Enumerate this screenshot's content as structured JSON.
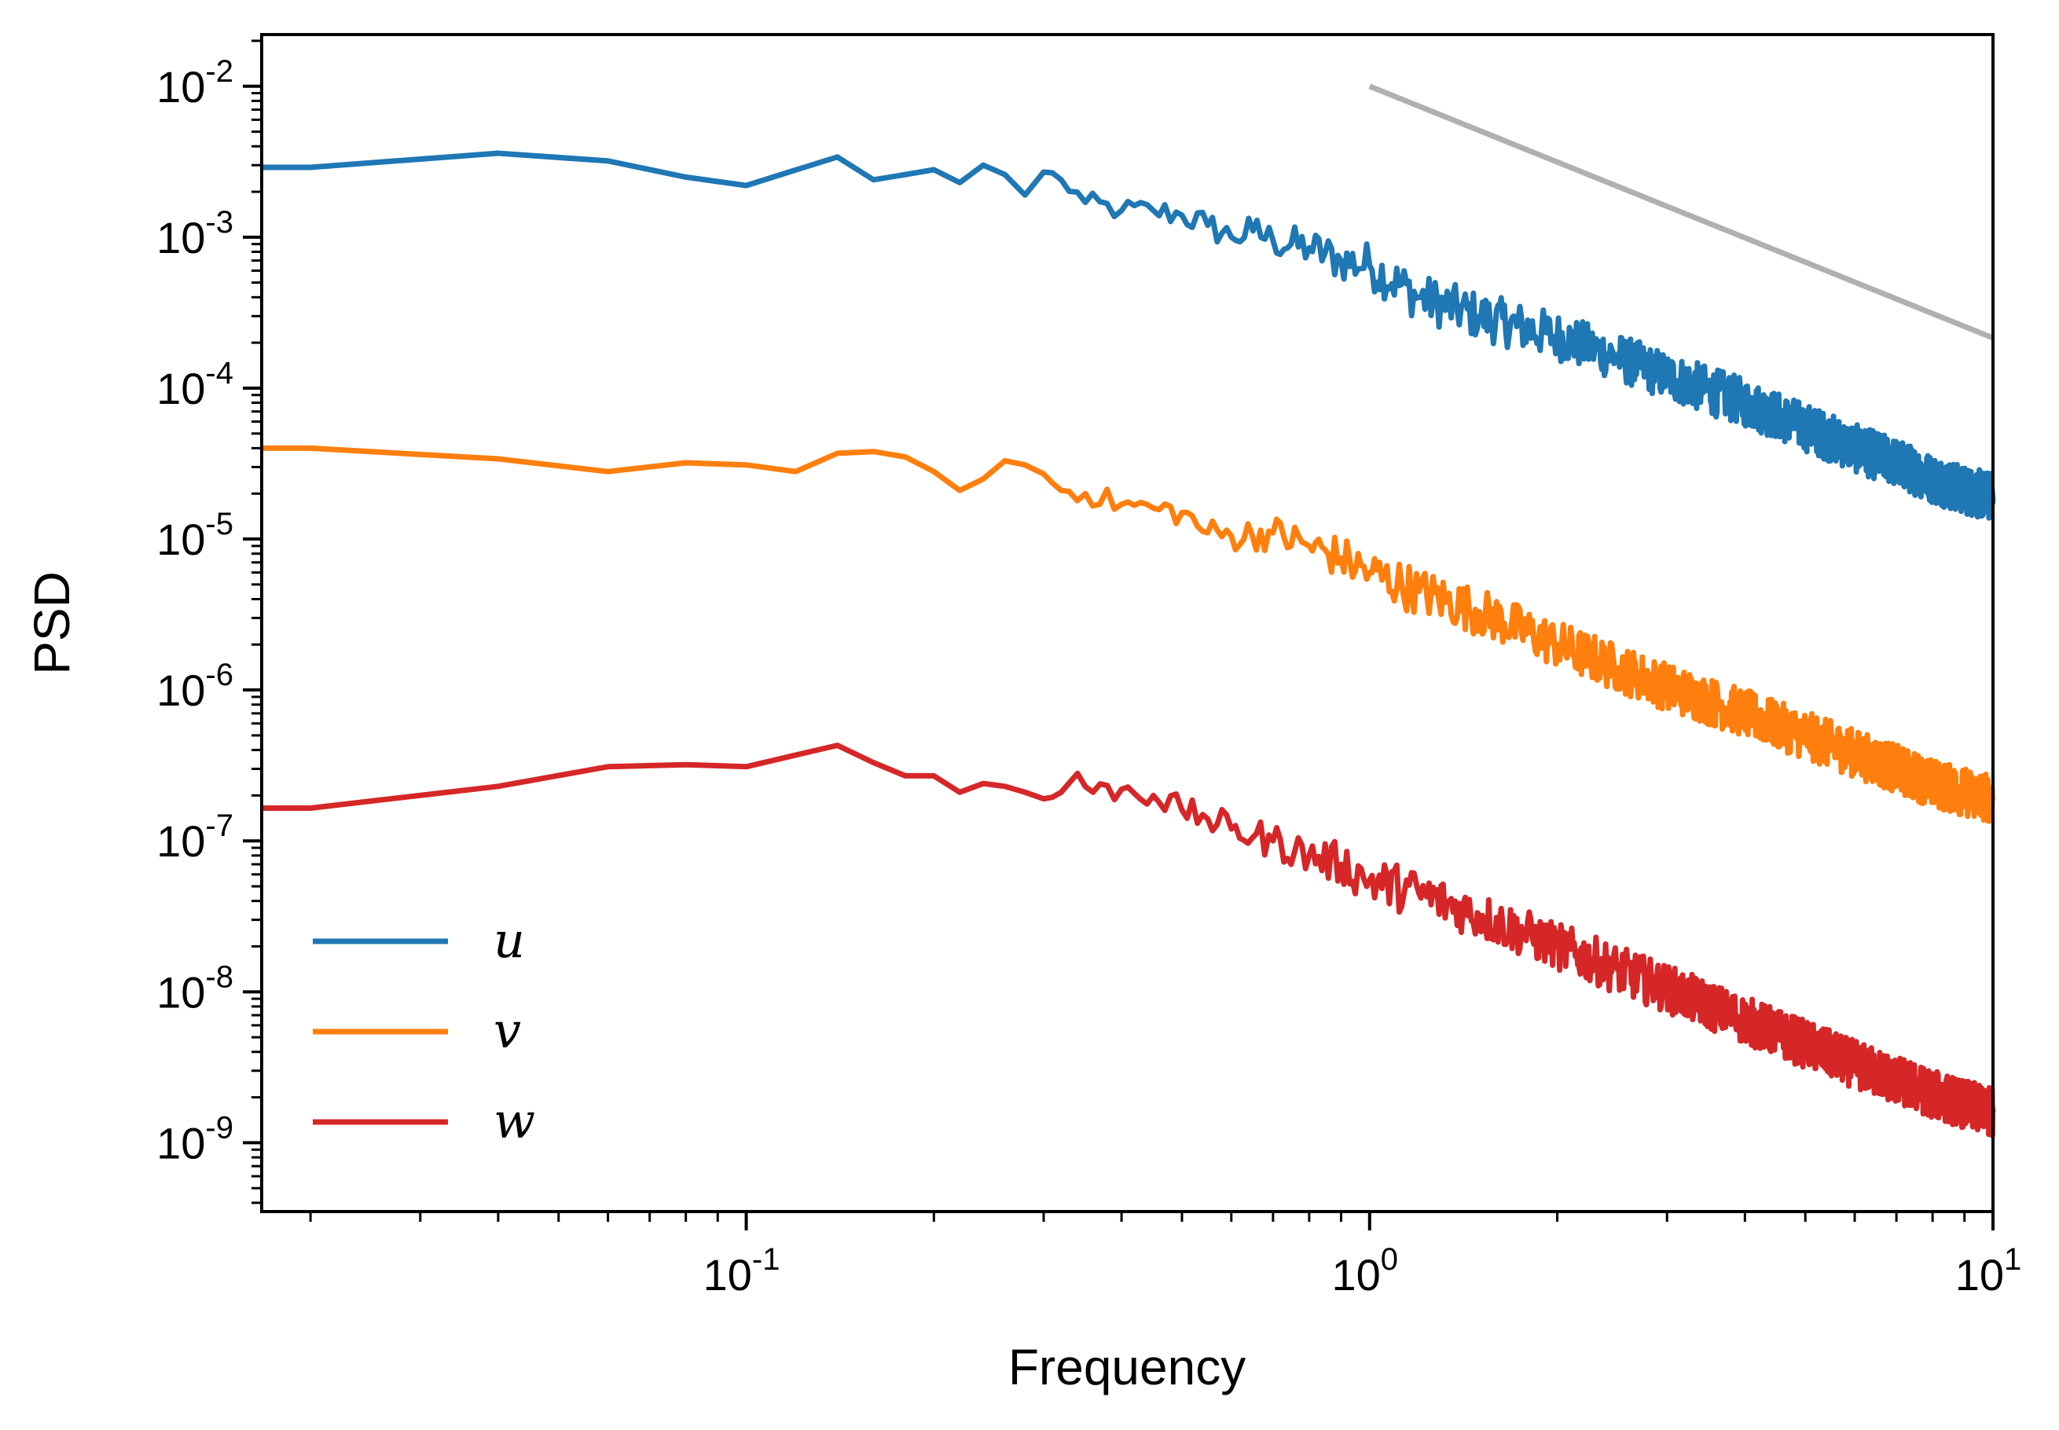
{
  "chart_data": {
    "type": "line",
    "xscale": "log",
    "yscale": "log",
    "xlim": [
      0.0167,
      10
    ],
    "ylim": [
      3.5e-10,
      0.022
    ],
    "xlabel": "Frequency",
    "ylabel": "PSD",
    "x_ticks": [
      {
        "value": 0.1,
        "base": "10",
        "exp": "-1"
      },
      {
        "value": 1,
        "base": "10",
        "exp": "0"
      },
      {
        "value": 10,
        "base": "10",
        "exp": "1"
      }
    ],
    "y_ticks": [
      {
        "value": 0.01,
        "base": "10",
        "exp": "-2"
      },
      {
        "value": 0.001,
        "base": "10",
        "exp": "-3"
      },
      {
        "value": 0.0001,
        "base": "10",
        "exp": "-4"
      },
      {
        "value": 1e-05,
        "base": "10",
        "exp": "-5"
      },
      {
        "value": 1e-06,
        "base": "10",
        "exp": "-6"
      },
      {
        "value": 1e-07,
        "base": "10",
        "exp": "-7"
      },
      {
        "value": 1e-08,
        "base": "10",
        "exp": "-8"
      },
      {
        "value": 1e-09,
        "base": "10",
        "exp": "-9"
      }
    ],
    "legend": {
      "position": "lower-left"
    },
    "series": [
      {
        "name": "u",
        "color": "#1f77b4",
        "x": [
          0.0167,
          0.02,
          0.04,
          0.06,
          0.08,
          0.1,
          0.14,
          0.16,
          0.18,
          0.2,
          0.22,
          0.24,
          0.26,
          0.28,
          0.3,
          0.32,
          0.35,
          0.4,
          0.45,
          0.5,
          0.55,
          0.6,
          0.65,
          0.7,
          0.8,
          0.9,
          1.0,
          1.2,
          1.5,
          2.0,
          2.5,
          3.0,
          4.0,
          5.0,
          6.0,
          7.0,
          8.0,
          9.0,
          10.0
        ],
        "y": [
          0.0029,
          0.0029,
          0.0036,
          0.0032,
          0.0025,
          0.0022,
          0.0034,
          0.0024,
          0.0026,
          0.0028,
          0.0023,
          0.003,
          0.0026,
          0.0019,
          0.0027,
          0.0024,
          0.0017,
          0.0015,
          0.0015,
          0.0014,
          0.0012,
          0.001,
          0.0011,
          0.00095,
          0.00085,
          0.0007,
          0.00065,
          0.0004,
          0.0003,
          0.00022,
          0.00016,
          0.00012,
          8e-05,
          5.5e-05,
          4e-05,
          3.2e-05,
          2.5e-05,
          2.1e-05,
          1.9e-05
        ]
      },
      {
        "name": "v",
        "color": "#ff7f0e",
        "x": [
          0.0167,
          0.02,
          0.04,
          0.06,
          0.08,
          0.1,
          0.12,
          0.14,
          0.16,
          0.18,
          0.2,
          0.22,
          0.24,
          0.26,
          0.28,
          0.3,
          0.32,
          0.35,
          0.4,
          0.45,
          0.5,
          0.55,
          0.6,
          0.7,
          0.8,
          0.9,
          1.0,
          1.2,
          1.5,
          2.0,
          2.5,
          3.0,
          4.0,
          5.0,
          6.0,
          7.0,
          8.0,
          9.0,
          10.0
        ],
        "y": [
          4e-05,
          4e-05,
          3.4e-05,
          2.8e-05,
          3.2e-05,
          3.1e-05,
          2.8e-05,
          3.7e-05,
          3.8e-05,
          3.5e-05,
          2.8e-05,
          2.1e-05,
          2.5e-05,
          3.3e-05,
          3.1e-05,
          2.7e-05,
          2.1e-05,
          2e-05,
          1.7e-05,
          1.6e-05,
          1.5e-05,
          1.1e-05,
          1.05e-05,
          1.1e-05,
          9e-06,
          7.5e-06,
          6e-06,
          4.5e-06,
          3.3e-06,
          2e-06,
          1.4e-06,
          1.05e-06,
          7e-07,
          5e-07,
          3.8e-07,
          3e-07,
          2.4e-07,
          2.1e-07,
          1.9e-07
        ]
      },
      {
        "name": "w",
        "color": "#d62728",
        "x": [
          0.0167,
          0.02,
          0.04,
          0.06,
          0.08,
          0.1,
          0.14,
          0.16,
          0.18,
          0.2,
          0.22,
          0.24,
          0.26,
          0.28,
          0.3,
          0.32,
          0.34,
          0.36,
          0.4,
          0.45,
          0.5,
          0.55,
          0.6,
          0.7,
          0.8,
          0.9,
          1.0,
          1.2,
          1.5,
          2.0,
          2.5,
          3.0,
          4.0,
          5.0,
          6.0,
          7.0,
          8.0,
          9.0,
          10.0
        ],
        "y": [
          1.65e-07,
          1.65e-07,
          2.3e-07,
          3.1e-07,
          3.2e-07,
          3.1e-07,
          4.3e-07,
          3.3e-07,
          2.7e-07,
          2.7e-07,
          2.1e-07,
          2.4e-07,
          2.3e-07,
          2.1e-07,
          1.9e-07,
          2.1e-07,
          2.8e-07,
          2.1e-07,
          2.2e-07,
          2e-07,
          1.6e-07,
          1.4e-07,
          1.2e-07,
          1e-07,
          8e-08,
          7e-08,
          5.5e-08,
          4.5e-08,
          3.2e-08,
          2e-08,
          1.4e-08,
          1.05e-08,
          6.5e-09,
          4.5e-09,
          3.3e-09,
          2.6e-09,
          2.1e-09,
          1.8e-09,
          1.6e-09
        ]
      }
    ],
    "reference_line": {
      "color": "#b0b0b0",
      "x": [
        1,
        10
      ],
      "y": [
        0.01,
        0.000215
      ]
    }
  }
}
